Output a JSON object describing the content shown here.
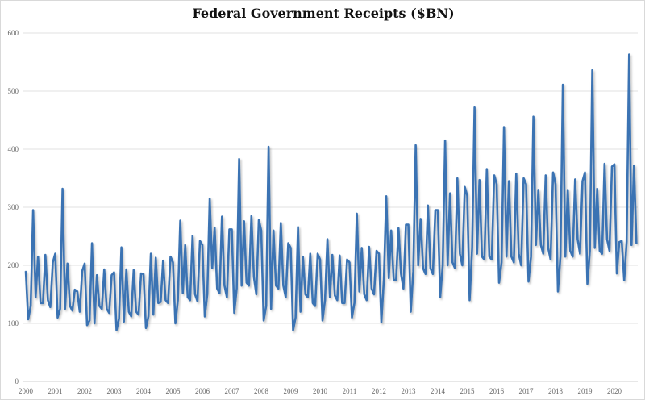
{
  "chart_data": {
    "type": "line",
    "title": "Federal Government Receipts ($BN)",
    "xlabel": "",
    "ylabel": "",
    "ylim": [
      0,
      600
    ],
    "yticks": [
      "0",
      "100",
      "200",
      "300",
      "400",
      "500",
      "600"
    ],
    "xticks": [
      "2000",
      "2001",
      "2002",
      "2003",
      "2004",
      "2005",
      "2006",
      "2007",
      "2008",
      "2009",
      "2010",
      "2011",
      "2012",
      "2013",
      "2014",
      "2015",
      "2016",
      "2017",
      "2018",
      "2019",
      "2020"
    ],
    "x_start": "2000-01",
    "x_frequency": "monthly",
    "grid": true,
    "legend": "none",
    "line_color": "#3b73b3",
    "series": [
      {
        "name": "Federal Government Receipts",
        "values": [
          190,
          107,
          130,
          295,
          145,
          215,
          135,
          135,
          218,
          140,
          128,
          205,
          220,
          110,
          125,
          332,
          125,
          203,
          130,
          122,
          158,
          155,
          120,
          190,
          203,
          97,
          105,
          238,
          100,
          183,
          130,
          125,
          193,
          125,
          118,
          183,
          188,
          88,
          108,
          231,
          103,
          193,
          120,
          112,
          192,
          120,
          115,
          186,
          185,
          92,
          112,
          220,
          115,
          213,
          135,
          137,
          208,
          140,
          135,
          215,
          205,
          100,
          140,
          277,
          152,
          235,
          145,
          140,
          251,
          150,
          138,
          242,
          235,
          112,
          150,
          315,
          195,
          265,
          160,
          152,
          284,
          165,
          145,
          262,
          262,
          118,
          160,
          383,
          165,
          276,
          170,
          165,
          285,
          180,
          150,
          278,
          260,
          105,
          130,
          404,
          125,
          260,
          165,
          160,
          273,
          165,
          145,
          238,
          230,
          88,
          110,
          266,
          120,
          215,
          150,
          145,
          220,
          135,
          130,
          220,
          210,
          105,
          140,
          245,
          145,
          218,
          148,
          140,
          217,
          135,
          135,
          210,
          205,
          110,
          135,
          289,
          155,
          230,
          150,
          140,
          232,
          160,
          150,
          225,
          220,
          102,
          175,
          319,
          178,
          260,
          175,
          175,
          264,
          185,
          160,
          270,
          270,
          120,
          190,
          407,
          200,
          280,
          195,
          185,
          303,
          195,
          185,
          295,
          295,
          145,
          200,
          415,
          200,
          324,
          205,
          195,
          350,
          220,
          200,
          335,
          320,
          140,
          230,
          472,
          220,
          347,
          215,
          210,
          366,
          215,
          210,
          355,
          340,
          170,
          205,
          438,
          215,
          345,
          215,
          205,
          358,
          220,
          200,
          350,
          340,
          172,
          215,
          456,
          235,
          330,
          235,
          220,
          355,
          230,
          210,
          360,
          340,
          155,
          215,
          511,
          215,
          330,
          225,
          215,
          348,
          245,
          220,
          345,
          360,
          168,
          225,
          536,
          230,
          332,
          225,
          220,
          375,
          245,
          225,
          370,
          374,
          186,
          240,
          242,
          174,
          241,
          563,
          235,
          372,
          237
        ]
      }
    ]
  }
}
